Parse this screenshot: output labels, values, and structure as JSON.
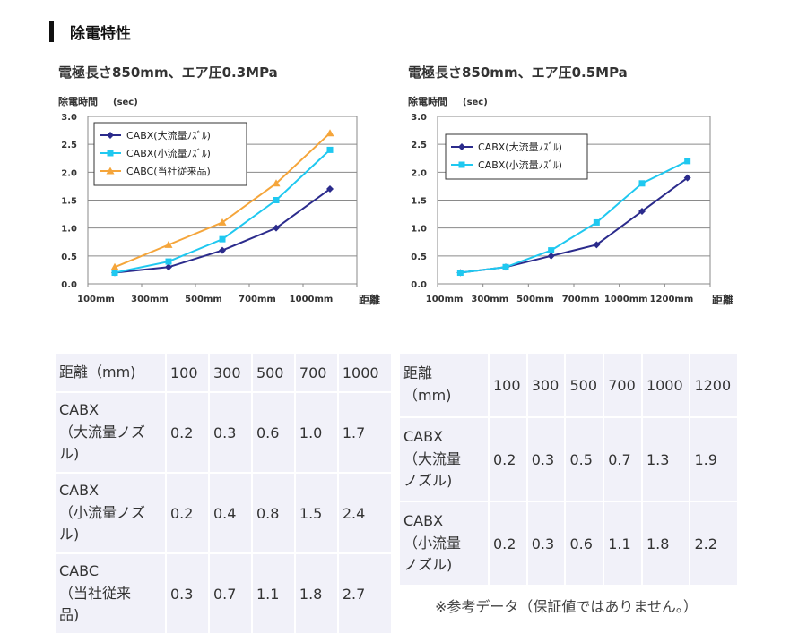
{
  "section_title": "除電特性",
  "charts": [
    {
      "caption": "電極長さ850mm、エア圧0.3MPa",
      "ylabel": "除電時間",
      "yunit": "(sec)",
      "xlabel": "距離",
      "legend": [
        "CABX(大流量ﾉｽﾞﾙ)",
        "CABX(小流量ﾉｽﾞﾙ)",
        "CABC(当社従来品)"
      ]
    },
    {
      "caption": "電極長さ850mm、エア圧0.5MPa",
      "ylabel": "除電時間",
      "yunit": "(sec)",
      "xlabel": "距離",
      "legend": [
        "CABX(大流量ﾉｽﾞﾙ)",
        "CABX(小流量ﾉｽﾞﾙ)"
      ]
    }
  ],
  "chart_data": [
    {
      "type": "line",
      "title": "電極長さ850mm、エア圧0.3MPa",
      "xlabel": "距離",
      "ylabel": "除電時間 (sec)",
      "categories": [
        "100mm",
        "300mm",
        "500mm",
        "700mm",
        "1000mm"
      ],
      "ylim": [
        0,
        3.0
      ],
      "yticks": [
        "0.0",
        "0.5",
        "1.0",
        "1.5",
        "2.0",
        "2.5",
        "3.0"
      ],
      "grid": true,
      "legend_position": "top-left",
      "series": [
        {
          "name": "CABX(大流量ﾉｽﾞﾙ)",
          "color": "#2b2b8c",
          "marker": "diamond",
          "values": [
            0.2,
            0.3,
            0.6,
            1.0,
            1.7
          ]
        },
        {
          "name": "CABX(小流量ﾉｽﾞﾙ)",
          "color": "#1fc8f0",
          "marker": "square",
          "values": [
            0.2,
            0.4,
            0.8,
            1.5,
            2.4
          ]
        },
        {
          "name": "CABC(当社従来品)",
          "color": "#f5a53a",
          "marker": "triangle",
          "values": [
            0.3,
            0.7,
            1.1,
            1.8,
            2.7
          ]
        }
      ]
    },
    {
      "type": "line",
      "title": "電極長さ850mm、エア圧0.5MPa",
      "xlabel": "距離",
      "ylabel": "除電時間 (sec)",
      "categories": [
        "100mm",
        "300mm",
        "500mm",
        "700mm",
        "1000mm",
        "1200mm"
      ],
      "ylim": [
        0,
        3.0
      ],
      "yticks": [
        "0.0",
        "0.5",
        "1.0",
        "1.5",
        "2.0",
        "2.5",
        "3.0"
      ],
      "grid": true,
      "legend_position": "top-left",
      "series": [
        {
          "name": "CABX(大流量ﾉｽﾞﾙ)",
          "color": "#2b2b8c",
          "marker": "diamond",
          "values": [
            0.2,
            0.3,
            0.5,
            0.7,
            1.3,
            1.9
          ]
        },
        {
          "name": "CABX(小流量ﾉｽﾞﾙ)",
          "color": "#1fc8f0",
          "marker": "square",
          "values": [
            0.2,
            0.3,
            0.6,
            1.1,
            1.8,
            2.2
          ]
        }
      ]
    }
  ],
  "table_left": {
    "header": [
      "距離（mm)",
      "100",
      "300",
      "500",
      "700",
      "1000"
    ],
    "rows": [
      {
        "label": [
          "CABX",
          "（大流量ノズ",
          "ル)"
        ],
        "values": [
          "0.2",
          "0.3",
          "0.6",
          "1.0",
          "1.7"
        ]
      },
      {
        "label": [
          "CABX",
          "（小流量ノズ",
          "ル)"
        ],
        "values": [
          "0.2",
          "0.4",
          "0.8",
          "1.5",
          "2.4"
        ]
      },
      {
        "label": [
          "CABC",
          "（当社従来",
          "品)"
        ],
        "values": [
          "0.3",
          "0.7",
          "1.1",
          "1.8",
          "2.7"
        ]
      }
    ]
  },
  "table_right": {
    "header": [
      [
        "距離",
        "（mm)"
      ],
      "100",
      "300",
      "500",
      "700",
      "1000",
      "1200"
    ],
    "rows": [
      {
        "label": [
          "CABX",
          "（大流量",
          "ノズル)"
        ],
        "values": [
          "0.2",
          "0.3",
          "0.5",
          "0.7",
          "1.3",
          "1.9"
        ]
      },
      {
        "label": [
          "CABX",
          "（小流量",
          "ノズル)"
        ],
        "values": [
          "0.2",
          "0.3",
          "0.6",
          "1.1",
          "1.8",
          "2.2"
        ]
      }
    ]
  },
  "note": "※参考データ（保証値ではありません。）"
}
